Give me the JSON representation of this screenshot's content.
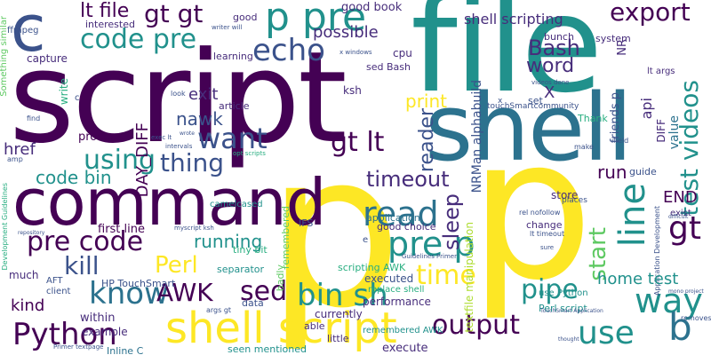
{
  "palette": {
    "dark_purple": "#440154",
    "purple": "#472d7b",
    "indigo": "#3b528b",
    "blue": "#2c728e",
    "teal": "#21918c",
    "green_teal": "#28ae80",
    "green": "#5ec962",
    "lime": "#addc30",
    "yellow": "#fde725"
  },
  "words": {
    "script": "script",
    "file": "file",
    "shell": "shell",
    "p_big_center": "p",
    "p_big_right": "p",
    "command": "command",
    "p_pre": "p pre",
    "code_pre": "code pre",
    "shell_script_bottom": "shell script",
    "gt_gt": "gt gt",
    "lt_file": "lt file",
    "echo": "echo",
    "export": "export",
    "bash": "Bash",
    "word": "word",
    "pre_code": "pre code",
    "read": "read",
    "pre_p": "pre p",
    "using": "using",
    "thing": "thing",
    "want": "want",
    "gt_lt": "gt lt",
    "timeout": "timeout",
    "know": "know",
    "kill": "kill",
    "perl": "Perl",
    "awk": "AWK",
    "sed": "sed",
    "bin_sh": "bin sh",
    "time": "time",
    "output": "output",
    "pipe": "pipe",
    "use": "use",
    "way": "way",
    "b": "b",
    "python": "Python",
    "line": "line",
    "start": "start",
    "run": "run",
    "gt_right": "gt",
    "end": "END",
    "test_videos": "test videos",
    "code_bin": "code bin",
    "running": "running",
    "nawk": "nawk",
    "exit": "exit",
    "print": "print",
    "day_diff": "DAY_DIFF",
    "href": "href",
    "sleep": "sleep",
    "home_test": "home test",
    "reader": "reader",
    "shell_scripting_top": "shell scripting",
    "good_book": "good book",
    "possible": "possible",
    "nrman": "NRMan alphabuild",
    "touchsmart_community": "touchSmartcommunity",
    "first_line": "first line",
    "process": "process",
    "c": "c",
    "x_top": "x",
    "x_mid": "X",
    "kind": "kind",
    "much": "much",
    "within": "within",
    "example": "example",
    "inline_c": "Inline C",
    "executed": "executed",
    "performance": "performance",
    "currently": "currently",
    "able": "able",
    "little": "little",
    "execute": "execute",
    "seen_mentioned": "seen mentioned",
    "remembered_awk": "remembered AWK",
    "perl_script": "Perl script",
    "use_python": "use Python",
    "replace_shell": "replace shell",
    "scripting_awk": "scripting AWK",
    "separator": "separator",
    "tiny_bit": "tiny bit",
    "hp_touchsmart": "HP TouchSmart",
    "guide": "guide",
    "api": "api",
    "friends_p": "friends p",
    "application": "application",
    "good_choice": "good choice",
    "change": "change",
    "store": "store",
    "places": "places",
    "set": "set",
    "cpu": "cpu",
    "ksh": "ksh",
    "capture": "capture",
    "interested": "interested",
    "bunch": "bunch",
    "system": "system",
    "sed_bash": "sed Bash",
    "article": "article",
    "learning": "learning",
    "good": "good",
    "ffmpeg": "ffmpeg",
    "something_similar": "Something similar",
    "write": "write",
    "badly": "badly",
    "remembered": "remembered",
    "camelcased": "camelcased",
    "textfile_manipulation": "textfile manipulation",
    "value": "value",
    "diff": "DIFF",
    "exist": "exist",
    "nr": "NR",
    "lt_args": "lt args",
    "thank": "Thank",
    "field": "field",
    "make": "make",
    "ifs": "IFS",
    "data": "data",
    "client": "client",
    "aft": "AFT",
    "amp": "amp",
    "development_guidelines": "Development Guidelines",
    "rel_nofollow": "rel nofollow",
    "lt_timeout": "lt timeout",
    "args_gt": "args gt",
    "myscript_ksh": "myscript ksh",
    "exec_lt": "exec lt",
    "removes": "removes",
    "mono_project": "mono project",
    "difficult": "difficult",
    "application_development": "Application Development",
    "primer_textpage": "Primer textpage",
    "writer_will": "writer will",
    "e": "e",
    "look": "look",
    "opt_scripts": "opt scripts",
    "find": "find",
    "intervals": "intervals",
    "c_small": "c",
    "guidelines_primer": "Guidelines Primer",
    "touchsmart_application": "TouchSmart Application",
    "videos_done": "videos done",
    "x_windows": "x windows",
    "repository": "repository",
    "wrote": "wrote",
    "sure": "sure",
    "thought": "thought"
  }
}
